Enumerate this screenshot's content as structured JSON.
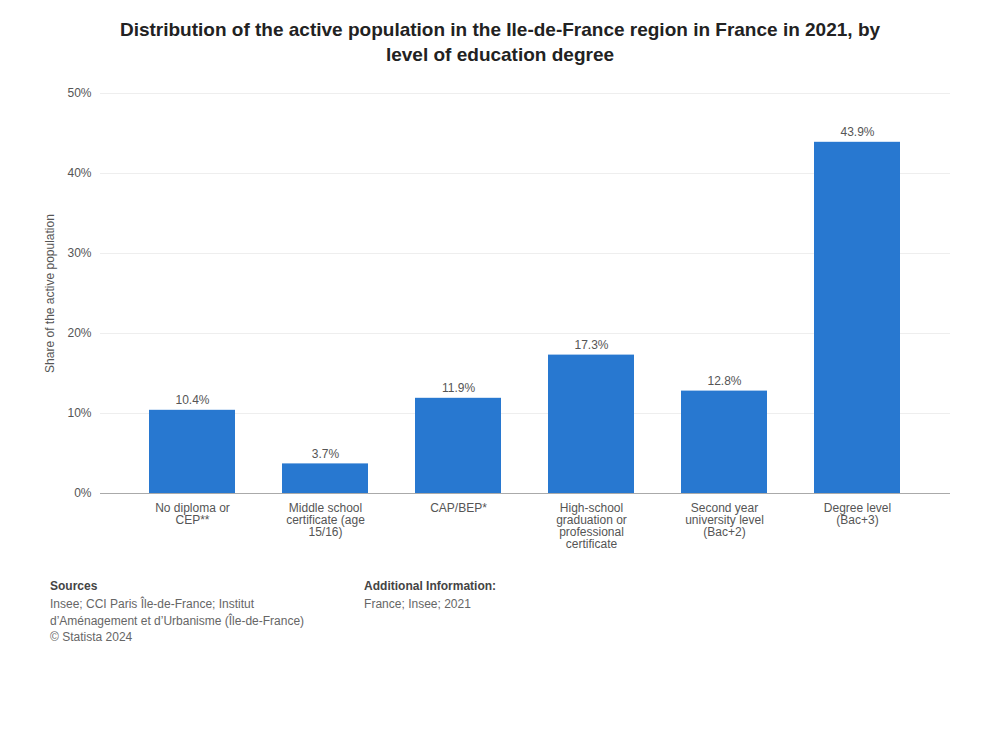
{
  "chart_data": {
    "type": "bar",
    "title": "Distribution of the active population in the Ile-de-France region in France in 2021, by\nlevel of education degree",
    "categories": [
      "No diploma or\nCEP**",
      "Middle school\ncertificate (age\n15/16)",
      "CAP/BEP*",
      "High-school\ngraduation or\nprofessional\ncertificate",
      "Second year\nuniversity level\n(Bac+2)",
      "Degree level\n(Bac+3)"
    ],
    "values": [
      10.4,
      3.7,
      11.9,
      17.3,
      12.8,
      43.9
    ],
    "value_labels": [
      "10.4%",
      "3.7%",
      "11.9%",
      "17.3%",
      "12.8%",
      "43.9%"
    ],
    "data_labels": true,
    "color": "#2878d0",
    "ylabel": "Share of the active population",
    "ylim": [
      0,
      50
    ],
    "yticks": [
      {
        "value": 0,
        "label": "0%"
      },
      {
        "value": 10,
        "label": "10%"
      },
      {
        "value": 20,
        "label": "20%"
      },
      {
        "value": 30,
        "label": "30%"
      },
      {
        "value": 40,
        "label": "40%"
      },
      {
        "value": 50,
        "label": "50%"
      }
    ],
    "grid": true,
    "annotations": [
      {
        "title": "Sources",
        "text": "Insee; CCI Paris Île-de-France; Institut\nd’Aménagement et d’Urbanisme (Île-de-France)\n© Statista 2024"
      },
      {
        "title": "Additional Information:",
        "text": "France; Insee; 2021"
      }
    ]
  }
}
